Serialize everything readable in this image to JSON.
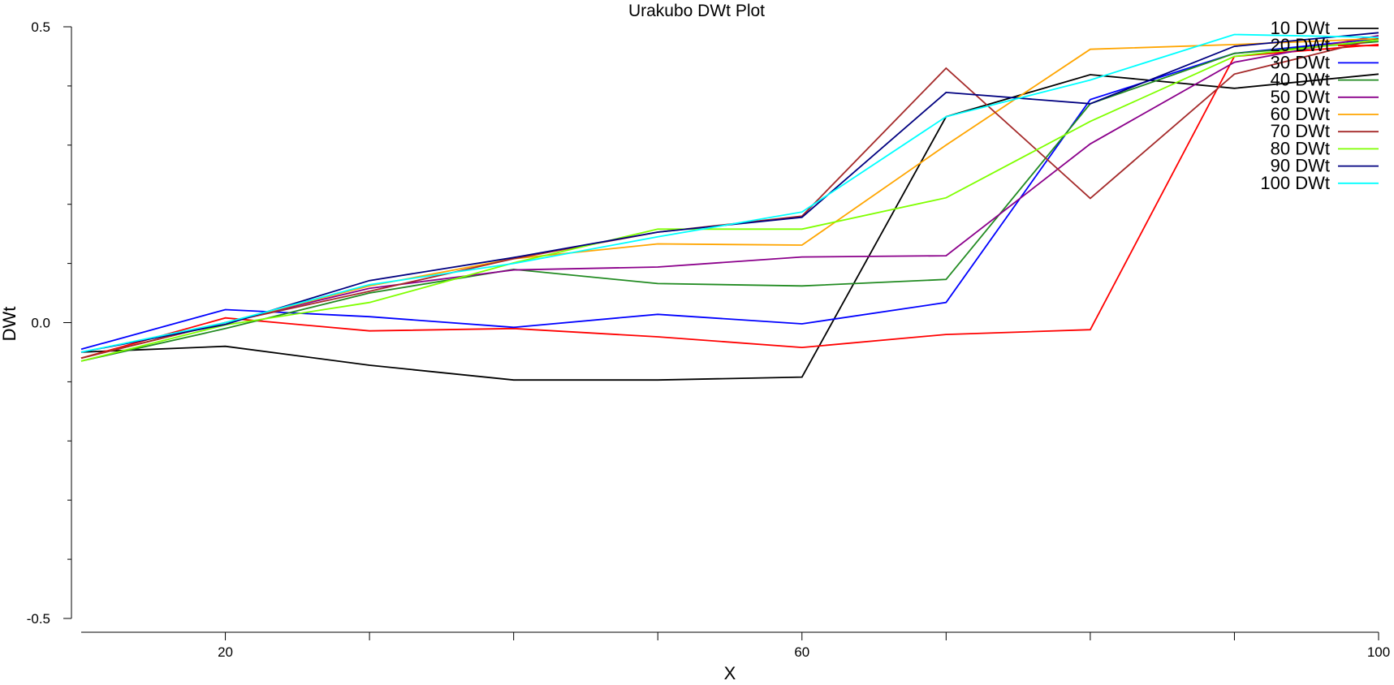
{
  "chart_data": {
    "type": "line",
    "title": "Urakubo DWt Plot",
    "xlabel": "X",
    "ylabel": "DWt",
    "xlim": [
      10,
      100
    ],
    "ylim": [
      -0.5,
      0.5
    ],
    "x_ticks_labeled": [
      20,
      60,
      100
    ],
    "x_ticks_minor": [
      30,
      40,
      50,
      70,
      80,
      90
    ],
    "y_ticks_labeled": [
      -0.5,
      0.0,
      0.5
    ],
    "y_ticks_minor": [
      -0.4,
      -0.3,
      -0.2,
      -0.1,
      0.1,
      0.2,
      0.3,
      0.4
    ],
    "y_tick_labels": [
      "-0.5",
      "0.0",
      "0.5"
    ],
    "x_tick_labels": [
      "20",
      "60",
      "100"
    ],
    "grid": false,
    "legend_position": "top-right",
    "x": [
      10,
      20,
      30,
      40,
      50,
      60,
      70,
      80,
      90,
      100
    ],
    "series": [
      {
        "name": "10 DWt",
        "color": "#000000",
        "values": [
          -0.05,
          -0.04,
          -0.072,
          -0.097,
          -0.097,
          -0.092,
          0.348,
          0.419,
          0.396,
          0.42
        ]
      },
      {
        "name": "20 DWt",
        "color": "#ff0000",
        "values": [
          -0.06,
          0.008,
          -0.014,
          -0.01,
          -0.024,
          -0.042,
          -0.02,
          -0.012,
          0.45,
          0.47
        ]
      },
      {
        "name": "30 DWt",
        "color": "#0000ff",
        "values": [
          -0.045,
          0.022,
          0.01,
          -0.008,
          0.014,
          -0.002,
          0.034,
          0.377,
          0.455,
          0.48
        ]
      },
      {
        "name": "40 DWt",
        "color": "#228b22",
        "values": [
          -0.065,
          -0.01,
          0.05,
          0.09,
          0.066,
          0.062,
          0.073,
          0.37,
          0.455,
          0.475
        ]
      },
      {
        "name": "50 DWt",
        "color": "#8b008b",
        "values": [
          -0.06,
          0.0,
          0.058,
          0.089,
          0.094,
          0.111,
          0.113,
          0.302,
          0.44,
          0.485
        ]
      },
      {
        "name": "60 DWt",
        "color": "#ffa500",
        "values": [
          -0.06,
          0.0,
          0.062,
          0.108,
          0.133,
          0.131,
          0.3,
          0.462,
          0.47,
          0.48
        ]
      },
      {
        "name": "70 DWt",
        "color": "#a52a2a",
        "values": [
          -0.06,
          0.0,
          0.053,
          0.108,
          0.153,
          0.18,
          0.43,
          0.21,
          0.42,
          0.48
        ]
      },
      {
        "name": "80 DWt",
        "color": "#7fff00",
        "values": [
          -0.065,
          -0.004,
          0.034,
          0.101,
          0.158,
          0.158,
          0.211,
          0.34,
          0.45,
          0.478
        ]
      },
      {
        "name": "90 DWt",
        "color": "#000080",
        "values": [
          -0.05,
          -0.003,
          0.071,
          0.11,
          0.153,
          0.178,
          0.389,
          0.37,
          0.467,
          0.49
        ]
      },
      {
        "name": "100 DWt",
        "color": "#00ffff",
        "values": [
          -0.05,
          0.0,
          0.064,
          0.1,
          0.145,
          0.187,
          0.348,
          0.41,
          0.487,
          0.482
        ]
      }
    ]
  }
}
